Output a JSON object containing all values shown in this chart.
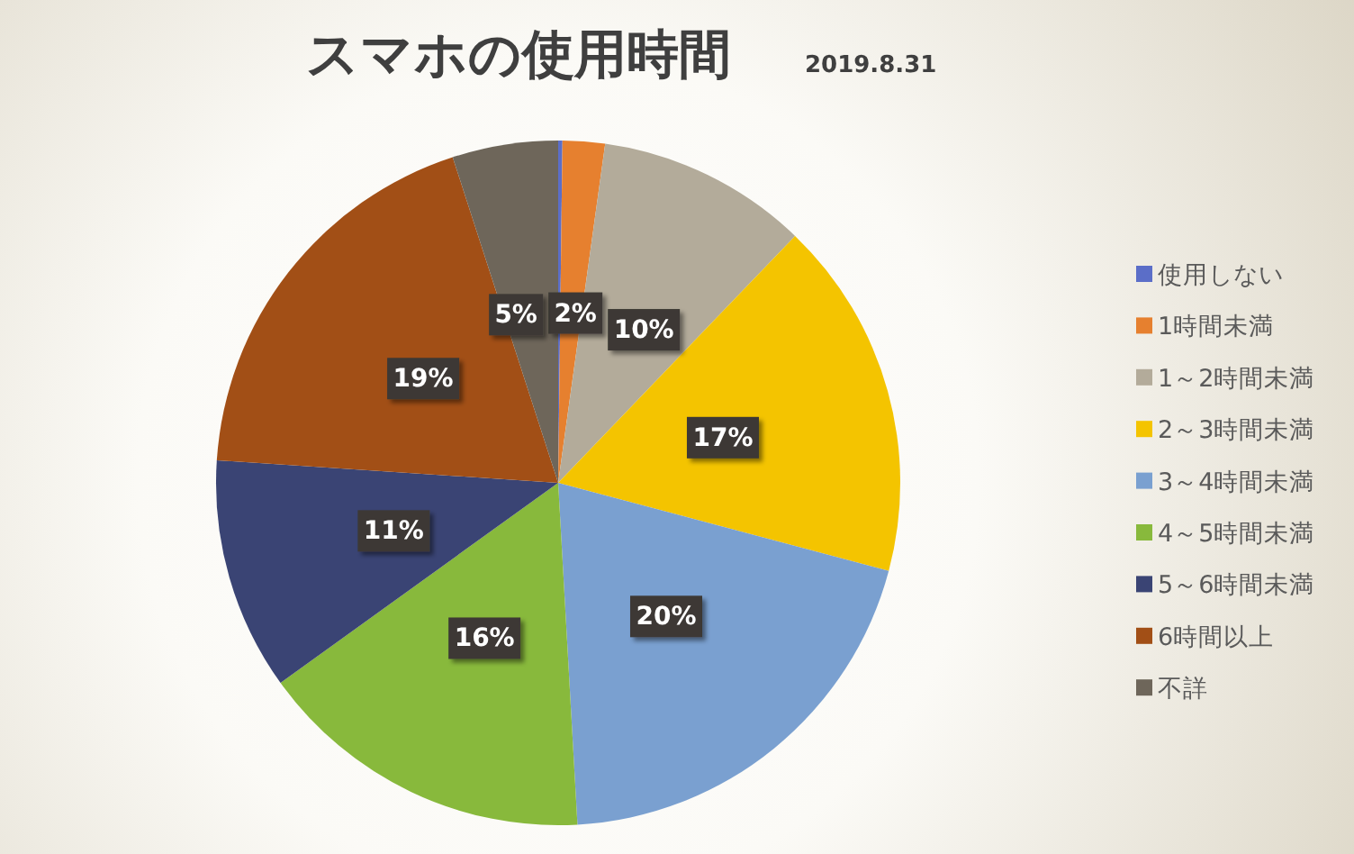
{
  "chart_data": {
    "type": "pie",
    "title": "スマホの使用時間",
    "subtitle": "2019.8.31",
    "categories": [
      "使用しない",
      "1時間未満",
      "1～2時間未満",
      "2～3時間未満",
      "3～4時間未満",
      "4～5時間未満",
      "5～6時間未満",
      "6時間以上",
      "不詳"
    ],
    "values": [
      0.2,
      2,
      10,
      17,
      20,
      16,
      11,
      19,
      5
    ],
    "value_labels": [
      null,
      "2%",
      "10%",
      "17%",
      "20%",
      "16%",
      "11%",
      "19%",
      "5%"
    ],
    "colors": [
      "#5b6ec8",
      "#e6802f",
      "#b3ab9a",
      "#f4c400",
      "#7aa0d0",
      "#88b93c",
      "#3a4474",
      "#a24f16",
      "#6e665a"
    ],
    "legend": "right"
  }
}
